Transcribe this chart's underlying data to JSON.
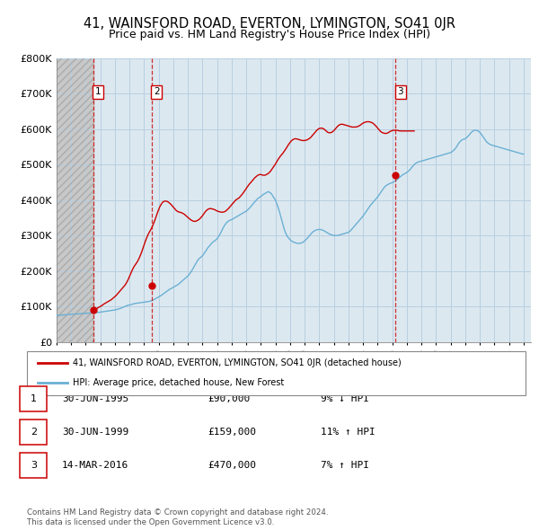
{
  "title1": "41, WAINSFORD ROAD, EVERTON, LYMINGTON, SO41 0JR",
  "title2": "Price paid vs. HM Land Registry's House Price Index (HPI)",
  "legend_line1": "41, WAINSFORD ROAD, EVERTON, LYMINGTON, SO41 0JR (detached house)",
  "legend_line2": "HPI: Average price, detached house, New Forest",
  "footer1": "Contains HM Land Registry data © Crown copyright and database right 2024.",
  "footer2": "This data is licensed under the Open Government Licence v3.0.",
  "transactions": [
    {
      "num": 1,
      "date": "30-JUN-1995",
      "price": 90000,
      "pct": "9%",
      "dir": "↓",
      "x": 1995.5
    },
    {
      "num": 2,
      "date": "30-JUN-1999",
      "price": 159000,
      "pct": "11%",
      "dir": "↑",
      "x": 1999.5
    },
    {
      "num": 3,
      "date": "14-MAR-2016",
      "price": 470000,
      "pct": "7%",
      "dir": "↑",
      "x": 2016.21
    }
  ],
  "hpi_color": "#6ab0d4",
  "price_color": "#cc0000",
  "vline_color": "#cc0000",
  "grid_color": "#b8cfe0",
  "bg_color": "#dce8f0",
  "hatch_bg": "#c8c8c8",
  "ylim": [
    0,
    800000
  ],
  "yticks": [
    0,
    100000,
    200000,
    300000,
    400000,
    500000,
    600000,
    700000,
    800000
  ],
  "xlim_start": 1993.0,
  "xlim_end": 2025.5,
  "hpi_x": [
    1993.0,
    1993.083,
    1993.167,
    1993.25,
    1993.333,
    1993.417,
    1993.5,
    1993.583,
    1993.667,
    1993.75,
    1993.833,
    1993.917,
    1994.0,
    1994.083,
    1994.167,
    1994.25,
    1994.333,
    1994.417,
    1994.5,
    1994.583,
    1994.667,
    1994.75,
    1994.833,
    1994.917,
    1995.0,
    1995.083,
    1995.167,
    1995.25,
    1995.333,
    1995.417,
    1995.5,
    1995.583,
    1995.667,
    1995.75,
    1995.833,
    1995.917,
    1996.0,
    1996.083,
    1996.167,
    1996.25,
    1996.333,
    1996.417,
    1996.5,
    1996.583,
    1996.667,
    1996.75,
    1996.833,
    1996.917,
    1997.0,
    1997.083,
    1997.167,
    1997.25,
    1997.333,
    1997.417,
    1997.5,
    1997.583,
    1997.667,
    1997.75,
    1997.833,
    1997.917,
    1998.0,
    1998.083,
    1998.167,
    1998.25,
    1998.333,
    1998.417,
    1998.5,
    1998.583,
    1998.667,
    1998.75,
    1998.833,
    1998.917,
    1999.0,
    1999.083,
    1999.167,
    1999.25,
    1999.333,
    1999.417,
    1999.5,
    1999.583,
    1999.667,
    1999.75,
    1999.833,
    1999.917,
    2000.0,
    2000.083,
    2000.167,
    2000.25,
    2000.333,
    2000.417,
    2000.5,
    2000.583,
    2000.667,
    2000.75,
    2000.833,
    2000.917,
    2001.0,
    2001.083,
    2001.167,
    2001.25,
    2001.333,
    2001.417,
    2001.5,
    2001.583,
    2001.667,
    2001.75,
    2001.833,
    2001.917,
    2002.0,
    2002.083,
    2002.167,
    2002.25,
    2002.333,
    2002.417,
    2002.5,
    2002.583,
    2002.667,
    2002.75,
    2002.833,
    2002.917,
    2003.0,
    2003.083,
    2003.167,
    2003.25,
    2003.333,
    2003.417,
    2003.5,
    2003.583,
    2003.667,
    2003.75,
    2003.833,
    2003.917,
    2004.0,
    2004.083,
    2004.167,
    2004.25,
    2004.333,
    2004.417,
    2004.5,
    2004.583,
    2004.667,
    2004.75,
    2004.833,
    2004.917,
    2005.0,
    2005.083,
    2005.167,
    2005.25,
    2005.333,
    2005.417,
    2005.5,
    2005.583,
    2005.667,
    2005.75,
    2005.833,
    2005.917,
    2006.0,
    2006.083,
    2006.167,
    2006.25,
    2006.333,
    2006.417,
    2006.5,
    2006.583,
    2006.667,
    2006.75,
    2006.833,
    2006.917,
    2007.0,
    2007.083,
    2007.167,
    2007.25,
    2007.333,
    2007.417,
    2007.5,
    2007.583,
    2007.667,
    2007.75,
    2007.833,
    2007.917,
    2008.0,
    2008.083,
    2008.167,
    2008.25,
    2008.333,
    2008.417,
    2008.5,
    2008.583,
    2008.667,
    2008.75,
    2008.833,
    2008.917,
    2009.0,
    2009.083,
    2009.167,
    2009.25,
    2009.333,
    2009.417,
    2009.5,
    2009.583,
    2009.667,
    2009.75,
    2009.833,
    2009.917,
    2010.0,
    2010.083,
    2010.167,
    2010.25,
    2010.333,
    2010.417,
    2010.5,
    2010.583,
    2010.667,
    2010.75,
    2010.833,
    2010.917,
    2011.0,
    2011.083,
    2011.167,
    2011.25,
    2011.333,
    2011.417,
    2011.5,
    2011.583,
    2011.667,
    2011.75,
    2011.833,
    2011.917,
    2012.0,
    2012.083,
    2012.167,
    2012.25,
    2012.333,
    2012.417,
    2012.5,
    2012.583,
    2012.667,
    2012.75,
    2012.833,
    2012.917,
    2013.0,
    2013.083,
    2013.167,
    2013.25,
    2013.333,
    2013.417,
    2013.5,
    2013.583,
    2013.667,
    2013.75,
    2013.833,
    2013.917,
    2014.0,
    2014.083,
    2014.167,
    2014.25,
    2014.333,
    2014.417,
    2014.5,
    2014.583,
    2014.667,
    2014.75,
    2014.833,
    2014.917,
    2015.0,
    2015.083,
    2015.167,
    2015.25,
    2015.333,
    2015.417,
    2015.5,
    2015.583,
    2015.667,
    2015.75,
    2015.833,
    2015.917,
    2016.0,
    2016.083,
    2016.167,
    2016.25,
    2016.333,
    2016.417,
    2016.5,
    2016.583,
    2016.667,
    2016.75,
    2016.833,
    2016.917,
    2017.0,
    2017.083,
    2017.167,
    2017.25,
    2017.333,
    2017.417,
    2017.5,
    2017.583,
    2017.667,
    2017.75,
    2017.833,
    2017.917,
    2018.0,
    2018.083,
    2018.167,
    2018.25,
    2018.333,
    2018.417,
    2018.5,
    2018.583,
    2018.667,
    2018.75,
    2018.833,
    2018.917,
    2019.0,
    2019.083,
    2019.167,
    2019.25,
    2019.333,
    2019.417,
    2019.5,
    2019.583,
    2019.667,
    2019.75,
    2019.833,
    2019.917,
    2020.0,
    2020.083,
    2020.167,
    2020.25,
    2020.333,
    2020.417,
    2020.5,
    2020.583,
    2020.667,
    2020.75,
    2020.833,
    2020.917,
    2021.0,
    2021.083,
    2021.167,
    2021.25,
    2021.333,
    2021.417,
    2021.5,
    2021.583,
    2021.667,
    2021.75,
    2021.833,
    2021.917,
    2022.0,
    2022.083,
    2022.167,
    2022.25,
    2022.333,
    2022.417,
    2022.5,
    2022.583,
    2022.667,
    2022.75,
    2022.833,
    2022.917,
    2023.0,
    2023.083,
    2023.167,
    2023.25,
    2023.333,
    2023.417,
    2023.5,
    2023.583,
    2023.667,
    2023.75,
    2023.833,
    2023.917,
    2024.0,
    2024.083,
    2024.167,
    2024.25,
    2024.333,
    2024.417,
    2024.5,
    2024.583,
    2024.667,
    2024.75,
    2024.833,
    2024.917,
    2025.0
  ],
  "hpi_y": [
    74000,
    74500,
    75000,
    75200,
    75500,
    75800,
    76000,
    76200,
    76500,
    76800,
    77000,
    77300,
    77500,
    77800,
    78000,
    78200,
    78500,
    78800,
    79000,
    79300,
    79600,
    79800,
    80000,
    80200,
    80500,
    80800,
    81000,
    81300,
    81600,
    81800,
    82000,
    82200,
    82500,
    82800,
    83000,
    83300,
    84000,
    84500,
    85000,
    85500,
    86000,
    86500,
    87000,
    87500,
    88000,
    88500,
    89000,
    89500,
    90000,
    91000,
    92000,
    93000,
    94000,
    95000,
    96500,
    98000,
    99500,
    101000,
    102500,
    103500,
    104000,
    105000,
    106000,
    107000,
    108000,
    108500,
    109000,
    109500,
    110000,
    110500,
    111000,
    111500,
    112000,
    112500,
    113000,
    113500,
    114000,
    115000,
    116000,
    117500,
    119000,
    121000,
    123000,
    125000,
    127000,
    129000,
    131000,
    133500,
    136000,
    138500,
    141000,
    143500,
    146000,
    148500,
    150000,
    152000,
    154000,
    156000,
    158000,
    160000,
    162000,
    165000,
    168000,
    171000,
    174000,
    177000,
    180000,
    183000,
    186000,
    190000,
    195000,
    200000,
    206000,
    212000,
    218000,
    224000,
    230000,
    234000,
    237000,
    240000,
    243000,
    248000,
    253000,
    258000,
    264000,
    268000,
    272000,
    276000,
    280000,
    283000,
    285000,
    288000,
    291000,
    296000,
    302000,
    308000,
    315000,
    322000,
    328000,
    333000,
    337000,
    340000,
    342000,
    344000,
    345000,
    347000,
    349000,
    351000,
    353000,
    355000,
    357000,
    359000,
    361000,
    363000,
    365000,
    367000,
    369000,
    372000,
    375000,
    379000,
    383000,
    387000,
    391000,
    395000,
    399000,
    403000,
    406000,
    408000,
    410000,
    413000,
    416000,
    418000,
    420000,
    422000,
    424000,
    422000,
    420000,
    416000,
    410000,
    405000,
    399000,
    390000,
    381000,
    370000,
    358000,
    345000,
    332000,
    320000,
    310000,
    302000,
    296000,
    292000,
    288000,
    285000,
    283000,
    281000,
    280000,
    279000,
    278000,
    278000,
    278000,
    279000,
    280000,
    282000,
    285000,
    288000,
    292000,
    296000,
    300000,
    304000,
    308000,
    311000,
    313000,
    315000,
    316000,
    317000,
    317000,
    317000,
    316000,
    315000,
    313000,
    311000,
    309000,
    307000,
    305000,
    303000,
    302000,
    301000,
    300000,
    300000,
    300000,
    300000,
    301000,
    302000,
    303000,
    304000,
    305000,
    306000,
    307000,
    308000,
    309000,
    312000,
    315000,
    319000,
    323000,
    327000,
    331000,
    335000,
    339000,
    343000,
    347000,
    351000,
    355000,
    360000,
    365000,
    370000,
    375000,
    380000,
    385000,
    389000,
    393000,
    397000,
    401000,
    405000,
    409000,
    414000,
    419000,
    424000,
    429000,
    434000,
    438000,
    441000,
    443000,
    445000,
    447000,
    448000,
    449000,
    451000,
    453000,
    455000,
    458000,
    461000,
    464000,
    467000,
    470000,
    472000,
    474000,
    476000,
    478000,
    481000,
    484000,
    488000,
    492000,
    496000,
    500000,
    503000,
    505000,
    507000,
    508000,
    509000,
    510000,
    511000,
    512000,
    513000,
    514000,
    515000,
    516000,
    517000,
    518000,
    519000,
    520000,
    521000,
    522000,
    523000,
    524000,
    525000,
    526000,
    527000,
    528000,
    529000,
    530000,
    531000,
    532000,
    533000,
    534000,
    536000,
    539000,
    542000,
    546000,
    551000,
    557000,
    562000,
    566000,
    569000,
    571000,
    572000,
    573000,
    576000,
    579000,
    583000,
    587000,
    591000,
    594000,
    596000,
    597000,
    597000,
    596000,
    594000,
    591000,
    587000,
    582000,
    577000,
    572000,
    567000,
    563000,
    560000,
    558000,
    556000,
    555000,
    554000,
    553000,
    552000,
    551000,
    550000,
    549000,
    548000,
    547000,
    546000,
    545000,
    544000,
    543000,
    542000,
    541000,
    540000,
    539000,
    538000,
    537000,
    536000,
    535000,
    534000,
    533000,
    532000,
    531000,
    530000,
    530000
  ],
  "price_y_from1995_5": [
    90000,
    91000,
    92500,
    94000,
    96000,
    98000,
    100000,
    102000,
    104500,
    107000,
    109000,
    111000,
    113000,
    115000,
    117000,
    119000,
    122000,
    125000,
    128000,
    131000,
    135000,
    139000,
    143000,
    147000,
    151000,
    155000,
    159000,
    164000,
    170000,
    177000,
    185000,
    193000,
    201000,
    208000,
    214000,
    219000,
    224000,
    230000,
    237000,
    245000,
    254000,
    264000,
    274000,
    284000,
    293000,
    301000,
    308000,
    314000,
    320000,
    328000,
    336000,
    345000,
    355000,
    365000,
    374000,
    382000,
    388000,
    393000,
    396000,
    397000,
    397000,
    396000,
    394000,
    391000,
    388000,
    384000,
    380000,
    376000,
    372000,
    369000,
    367000,
    366000,
    365000,
    364000,
    362000,
    360000,
    357000,
    354000,
    351000,
    348000,
    345000,
    343000,
    341000,
    340000,
    340000,
    341000,
    343000,
    345000,
    348000,
    352000,
    356000,
    361000,
    366000,
    370000,
    373000,
    375000,
    376000,
    376000,
    375000,
    374000,
    373000,
    371000,
    369000,
    368000,
    367000,
    366000,
    366000,
    366000,
    367000,
    369000,
    372000,
    375000,
    379000,
    383000,
    387000,
    391000,
    395000,
    399000,
    402000,
    404000,
    406000,
    410000,
    414000,
    418000,
    423000,
    428000,
    433000,
    438000,
    443000,
    447000,
    451000,
    455000,
    459000,
    463000,
    466000,
    469000,
    471000,
    472000,
    472000,
    471000,
    470000,
    470000,
    471000,
    473000,
    475000,
    478000,
    482000,
    487000,
    492000,
    497000,
    502000,
    508000,
    514000,
    519000,
    524000,
    528000,
    532000,
    537000,
    542000,
    547000,
    553000,
    558000,
    563000,
    567000,
    570000,
    572000,
    573000,
    573000,
    572000,
    571000,
    570000,
    569000,
    568000,
    568000,
    568000,
    569000,
    570000,
    572000,
    574000,
    577000,
    581000,
    585000,
    589000,
    593000,
    597000,
    600000,
    602000,
    603000,
    603000,
    602000,
    600000,
    597000,
    594000,
    591000,
    590000,
    590000,
    591000,
    593000,
    596000,
    600000,
    604000,
    608000,
    611000,
    613000,
    614000,
    614000,
    613000,
    612000,
    611000,
    610000,
    609000,
    608000,
    607000,
    606000,
    606000,
    606000,
    606000,
    607000,
    608000,
    610000,
    612000,
    615000,
    617000,
    619000,
    620000,
    621000,
    621000,
    621000,
    620000,
    619000,
    617000,
    614000,
    611000,
    607000,
    603000,
    599000,
    595000,
    592000,
    590000,
    589000,
    588000,
    588000,
    589000,
    591000,
    593000,
    595000,
    596000,
    597000,
    597000,
    597000,
    597000,
    596000,
    595000,
    595000,
    595000,
    595000,
    595000,
    595000,
    595000,
    595000,
    595000,
    595000,
    595000,
    595000,
    595000
  ],
  "price_start_x": 1995.5
}
